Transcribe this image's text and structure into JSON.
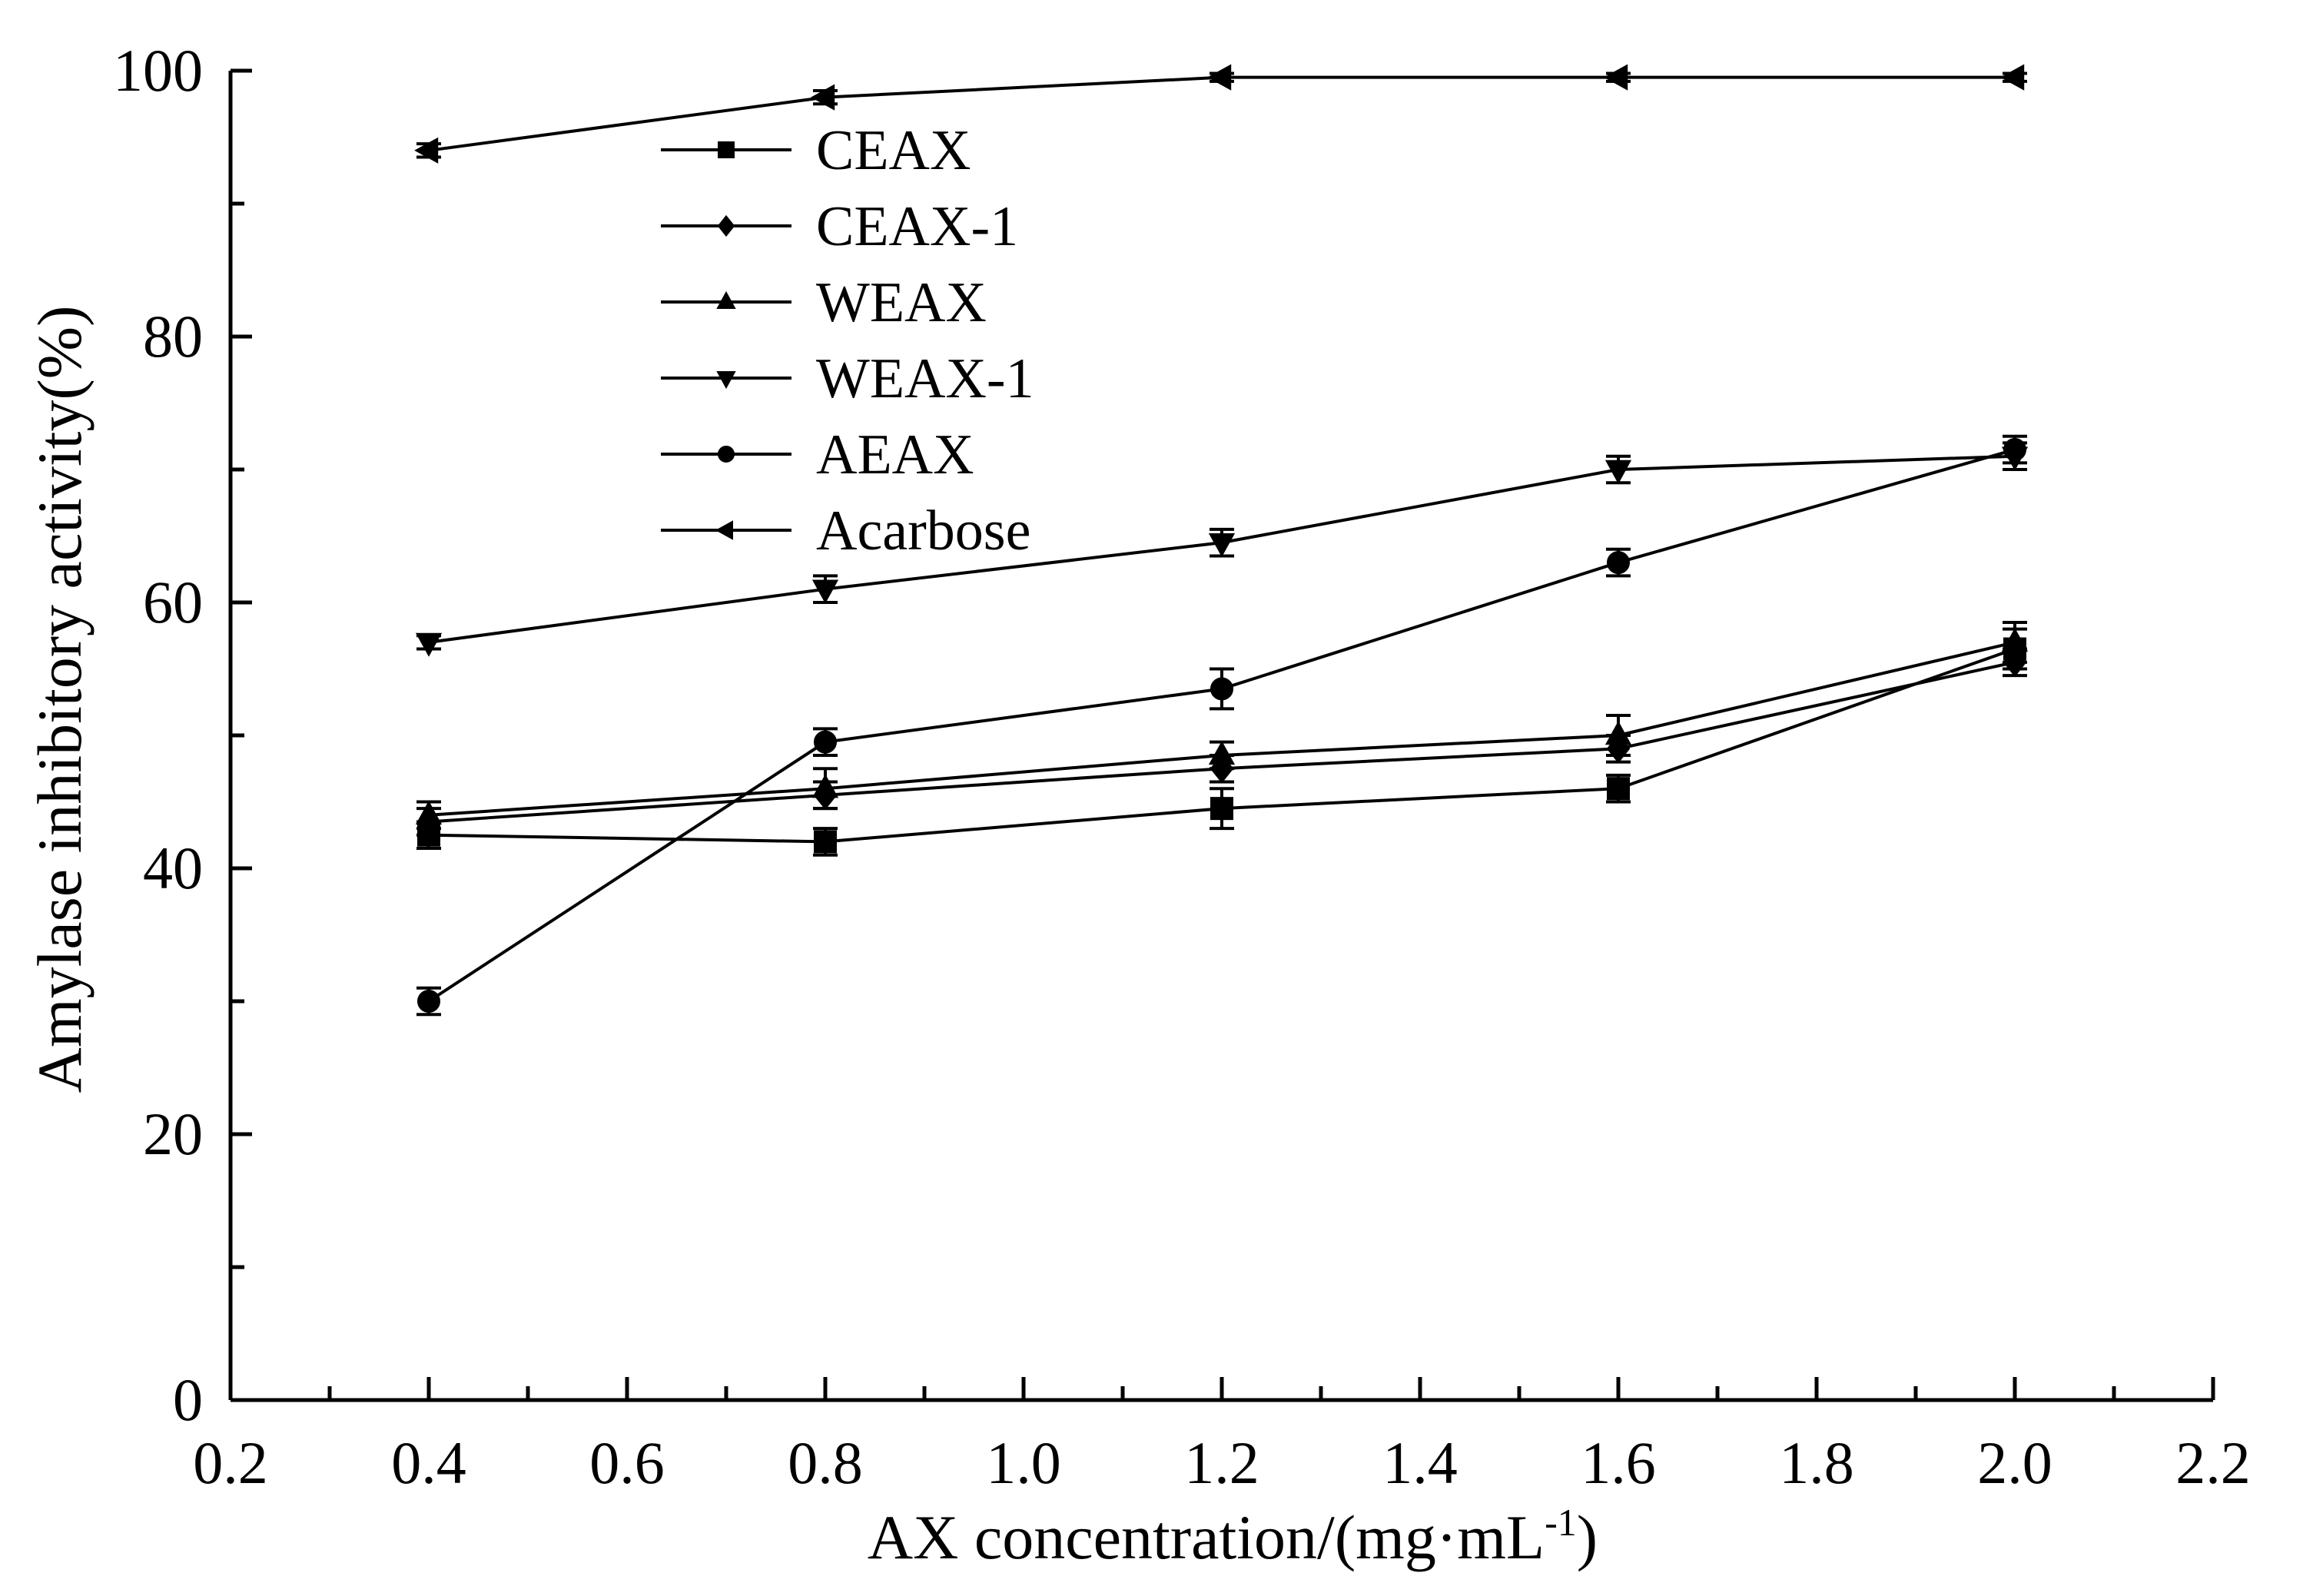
{
  "chart_data": {
    "type": "line",
    "title": "",
    "xlabel": "AX concentration/(mg·mL",
    "xlabel_sup": "-1",
    "xlabel_close": ")",
    "ylabel": "Amylase inhibitory activity(%)",
    "xlim": [
      0.2,
      2.2
    ],
    "ylim": [
      0,
      100
    ],
    "x_ticks": [
      "0.2",
      "0.4",
      "0.6",
      "0.8",
      "1.0",
      "1.2",
      "1.4",
      "1.6",
      "1.8",
      "2.0",
      "2.2"
    ],
    "y_ticks": [
      "0",
      "20",
      "40",
      "60",
      "80",
      "100"
    ],
    "grid": false,
    "legend_position": "top-left",
    "x": [
      0.4,
      0.8,
      1.2,
      1.6,
      2.0
    ],
    "series": [
      {
        "name": "CEAX",
        "marker": "square",
        "values": [
          42.5,
          42.0,
          44.5,
          46.0,
          56.5
        ],
        "errors": [
          1.0,
          1.0,
          1.5,
          1.0,
          1.5
        ]
      },
      {
        "name": "CEAX-1",
        "marker": "diamond",
        "values": [
          43.5,
          45.5,
          47.5,
          49.0,
          55.5
        ],
        "errors": [
          1.0,
          1.0,
          1.0,
          1.0,
          1.0
        ]
      },
      {
        "name": "WEAX",
        "marker": "triangle-up",
        "values": [
          44.0,
          46.0,
          48.5,
          50.0,
          57.0
        ],
        "errors": [
          1.0,
          1.5,
          1.0,
          1.5,
          1.5
        ]
      },
      {
        "name": "WEAX-1",
        "marker": "triangle-down",
        "values": [
          57.0,
          61.0,
          64.5,
          70.0,
          71.0
        ],
        "errors": [
          0.5,
          1.0,
          1.0,
          1.0,
          1.0
        ]
      },
      {
        "name": "AEAX",
        "marker": "circle",
        "values": [
          30.0,
          49.5,
          53.5,
          63.0,
          71.5
        ],
        "errors": [
          1.0,
          1.0,
          1.5,
          1.0,
          1.0
        ]
      },
      {
        "name": "Acarbose",
        "marker": "triangle-left",
        "values": [
          94.0,
          98.0,
          99.5,
          99.5,
          99.5
        ],
        "errors": [
          0.5,
          0.5,
          0.3,
          0.3,
          0.3
        ]
      }
    ]
  }
}
